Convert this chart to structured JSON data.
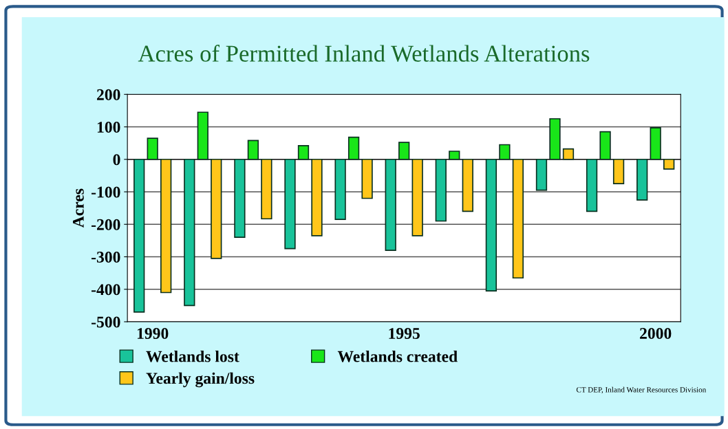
{
  "chart_data": {
    "type": "bar",
    "title": "Acres of Permitted Inland Wetlands Alterations",
    "ylabel": "Acres",
    "categories": [
      "1990",
      null,
      null,
      null,
      null,
      "1995",
      null,
      null,
      null,
      null,
      "2000"
    ],
    "series": [
      {
        "name": "Wetlands lost",
        "color": "#19c39a",
        "values": [
          -470,
          -450,
          -240,
          -275,
          -185,
          -280,
          -190,
          -405,
          -95,
          -160,
          -125
        ]
      },
      {
        "name": "Wetlands created",
        "color": "#19e619",
        "values": [
          65,
          145,
          58,
          42,
          68,
          52,
          25,
          45,
          125,
          85,
          97
        ]
      },
      {
        "name": "Yearly gain/loss",
        "color": "#ffc61a",
        "values": [
          -410,
          -305,
          -183,
          -235,
          -120,
          -235,
          -160,
          -365,
          32,
          -75,
          -30
        ]
      }
    ],
    "ylim": [
      -500,
      200
    ],
    "yticks": [
      -500,
      -400,
      -300,
      -200,
      -100,
      0,
      100,
      200
    ],
    "grid": "y",
    "legend": "bottom",
    "annotations": [
      "CT DEP, Inland Water Resources Division"
    ]
  }
}
